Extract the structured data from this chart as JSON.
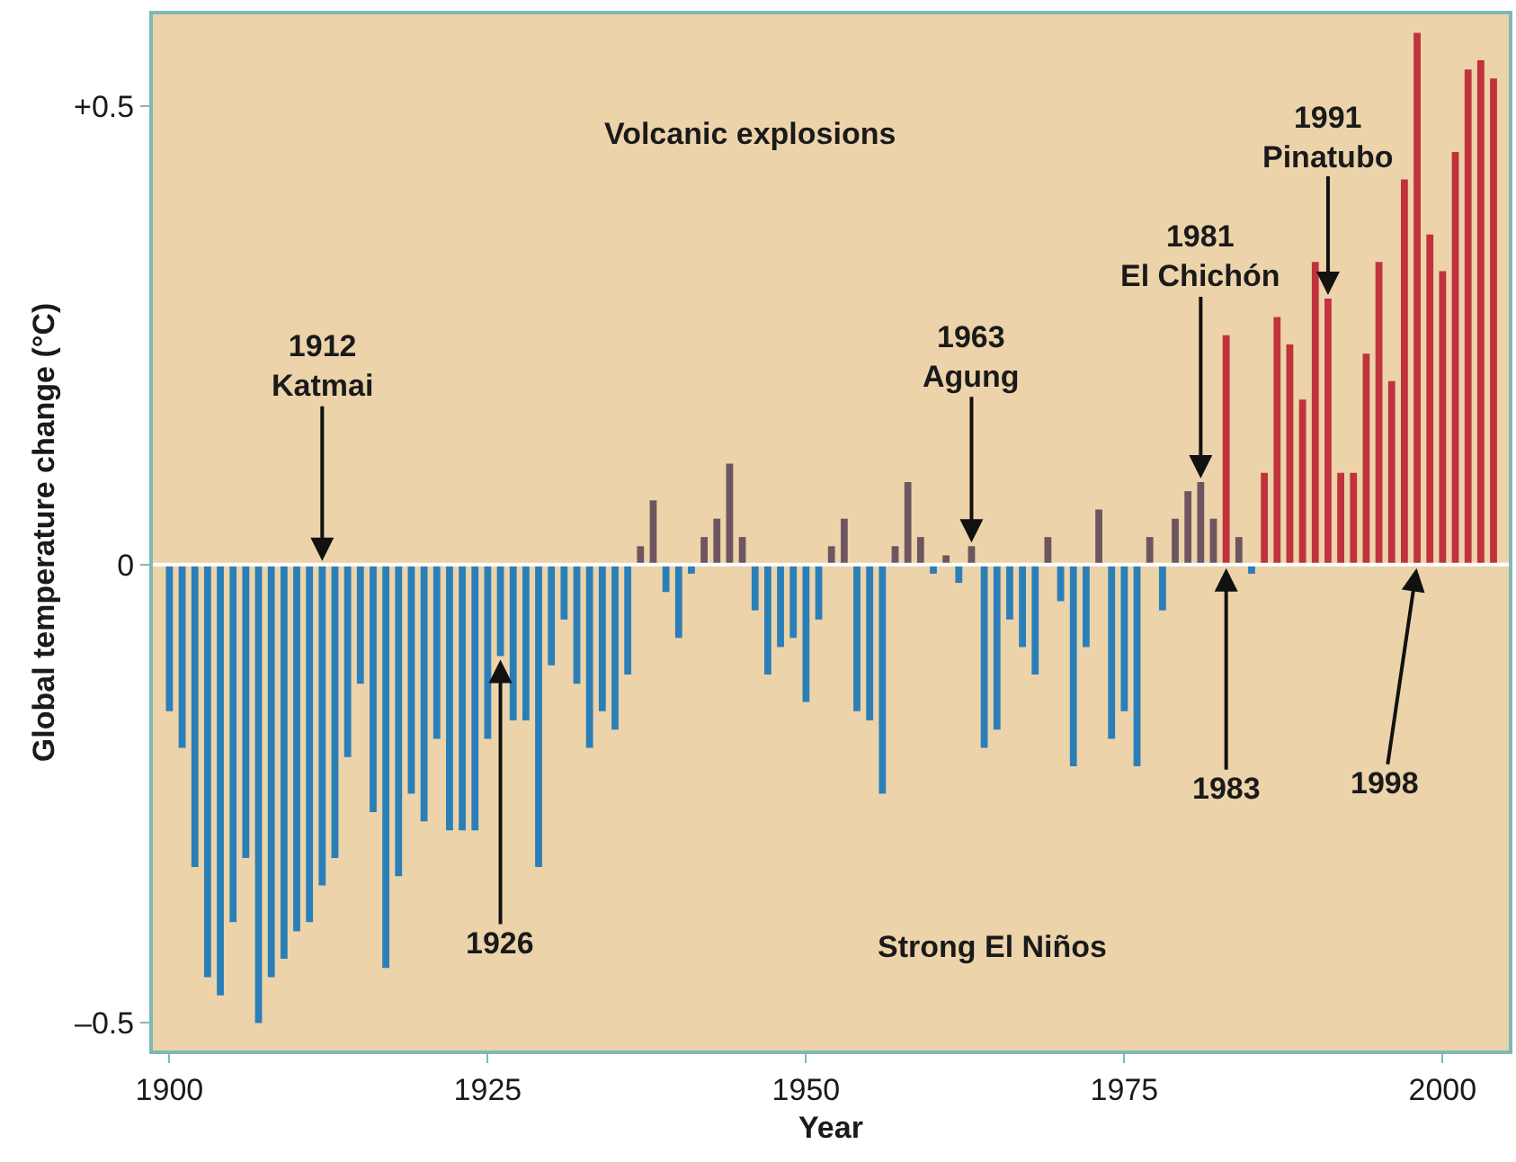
{
  "chart_data": {
    "type": "bar",
    "xlabel": "Year",
    "ylabel": "Global temperature change (°C)",
    "x": [
      1900,
      1901,
      1902,
      1903,
      1904,
      1905,
      1906,
      1907,
      1908,
      1909,
      1910,
      1911,
      1912,
      1913,
      1914,
      1915,
      1916,
      1917,
      1918,
      1919,
      1920,
      1921,
      1922,
      1923,
      1924,
      1925,
      1926,
      1927,
      1928,
      1929,
      1930,
      1931,
      1932,
      1933,
      1934,
      1935,
      1936,
      1937,
      1938,
      1939,
      1940,
      1941,
      1942,
      1943,
      1944,
      1945,
      1946,
      1947,
      1948,
      1949,
      1950,
      1951,
      1952,
      1953,
      1954,
      1955,
      1956,
      1957,
      1958,
      1959,
      1960,
      1961,
      1962,
      1963,
      1964,
      1965,
      1966,
      1967,
      1968,
      1969,
      1970,
      1971,
      1972,
      1973,
      1974,
      1975,
      1976,
      1977,
      1978,
      1979,
      1980,
      1981,
      1982,
      1983,
      1984,
      1985,
      1986,
      1987,
      1988,
      1989,
      1990,
      1991,
      1992,
      1993,
      1994,
      1995,
      1996,
      1997,
      1998,
      1999,
      2000,
      2001,
      2002,
      2003,
      2004
    ],
    "values": [
      -0.16,
      -0.2,
      -0.33,
      -0.45,
      -0.47,
      -0.39,
      -0.32,
      -0.5,
      -0.45,
      -0.43,
      -0.4,
      -0.39,
      -0.35,
      -0.32,
      -0.21,
      -0.13,
      -0.27,
      -0.44,
      -0.34,
      -0.25,
      -0.28,
      -0.19,
      -0.29,
      -0.29,
      -0.29,
      -0.19,
      -0.1,
      -0.17,
      -0.17,
      -0.33,
      -0.11,
      -0.06,
      -0.13,
      -0.2,
      -0.16,
      -0.18,
      -0.12,
      0.02,
      0.07,
      -0.03,
      -0.08,
      -0.01,
      0.03,
      0.05,
      0.11,
      0.03,
      -0.05,
      -0.12,
      -0.09,
      -0.08,
      -0.15,
      -0.06,
      0.02,
      0.05,
      -0.16,
      -0.17,
      -0.25,
      0.02,
      0.09,
      0.03,
      -0.01,
      0.01,
      -0.02,
      0.02,
      -0.2,
      -0.18,
      -0.06,
      -0.09,
      -0.12,
      0.03,
      -0.04,
      -0.22,
      -0.09,
      0.06,
      -0.19,
      -0.16,
      -0.22,
      0.03,
      -0.05,
      0.05,
      0.08,
      0.09,
      0.05,
      0.25,
      0.03,
      -0.01,
      0.1,
      0.27,
      0.24,
      0.18,
      0.33,
      0.29,
      0.1,
      0.1,
      0.23,
      0.33,
      0.2,
      0.42,
      0.58,
      0.36,
      0.32,
      0.45,
      0.54,
      0.55,
      0.53
    ],
    "colors": [
      "#2b7fb8",
      "#2b7fb8",
      "#2b7fb8",
      "#2b7fb8",
      "#2b7fb8",
      "#2b7fb8",
      "#2b7fb8",
      "#2b7fb8",
      "#2b7fb8",
      "#2b7fb8",
      "#2b7fb8",
      "#2b7fb8",
      "#2b7fb8",
      "#2b7fb8",
      "#2b7fb8",
      "#2b7fb8",
      "#2b7fb8",
      "#2b7fb8",
      "#2b7fb8",
      "#2b7fb8",
      "#2b7fb8",
      "#2b7fb8",
      "#2b7fb8",
      "#2b7fb8",
      "#2b7fb8",
      "#2b7fb8",
      "#2b7fb8",
      "#2b7fb8",
      "#2b7fb8",
      "#2b7fb8",
      "#2b7fb8",
      "#2b7fb8",
      "#2b7fb8",
      "#2b7fb8",
      "#2b7fb8",
      "#2b7fb8",
      "#2b7fb8",
      "#6e5660",
      "#6e5660",
      "#2b7fb8",
      "#2b7fb8",
      "#2b7fb8",
      "#6e5660",
      "#6e5660",
      "#6e5660",
      "#6e5660",
      "#2b7fb8",
      "#2b7fb8",
      "#2b7fb8",
      "#2b7fb8",
      "#2b7fb8",
      "#2b7fb8",
      "#6e5660",
      "#6e5660",
      "#2b7fb8",
      "#2b7fb8",
      "#2b7fb8",
      "#6e5660",
      "#6e5660",
      "#6e5660",
      "#2b7fb8",
      "#6e5660",
      "#2b7fb8",
      "#6e5660",
      "#2b7fb8",
      "#2b7fb8",
      "#2b7fb8",
      "#2b7fb8",
      "#2b7fb8",
      "#6e5660",
      "#2b7fb8",
      "#2b7fb8",
      "#2b7fb8",
      "#6e5660",
      "#2b7fb8",
      "#2b7fb8",
      "#2b7fb8",
      "#6e5660",
      "#2b7fb8",
      "#6e5660",
      "#6e5660",
      "#6e5660",
      "#6e5660",
      "#c0323c",
      "#6e5660",
      "#2b7fb8",
      "#c0323c",
      "#c0323c",
      "#c0323c",
      "#c0323c",
      "#c0323c",
      "#c0323c",
      "#c0323c",
      "#c0323c",
      "#c0323c",
      "#c0323c",
      "#c0323c",
      "#c0323c",
      "#c0323c",
      "#c0323c",
      "#c0323c",
      "#c0323c",
      "#c0323c",
      "#c0323c",
      "#c0323c"
    ],
    "xlim": [
      1898.7,
      2005.2
    ],
    "xticks": [
      1900,
      1925,
      1950,
      1975,
      2000
    ],
    "ylim": [
      -0.53,
      0.6
    ],
    "yticks": [
      {
        "value": -0.5,
        "label": "–0.5"
      },
      0,
      {
        "value": 0.5,
        "label": "+0.5"
      }
    ],
    "grid": false,
    "ref_lines": [
      {
        "axis": "y",
        "value": 0,
        "color": "#ffffff"
      }
    ],
    "annotations": [
      "Volcanic explosions",
      "Strong El Niños",
      {
        "text": "1912\nKatmai",
        "x": 1912,
        "y": 0
      },
      {
        "text": "1926",
        "x": 1926,
        "y": -0.1
      },
      {
        "text": "1963\nAgung",
        "x": 1963,
        "y": 0.02
      },
      {
        "text": "1981\nEl Chichón",
        "x": 1981,
        "y": 0.09
      },
      {
        "text": "1983",
        "x": 1983,
        "y": 0
      },
      {
        "text": "1991\nPinatubo",
        "x": 1991,
        "y": 0.29
      },
      {
        "text": "1998",
        "x": 1998,
        "y": 0
      }
    ]
  }
}
